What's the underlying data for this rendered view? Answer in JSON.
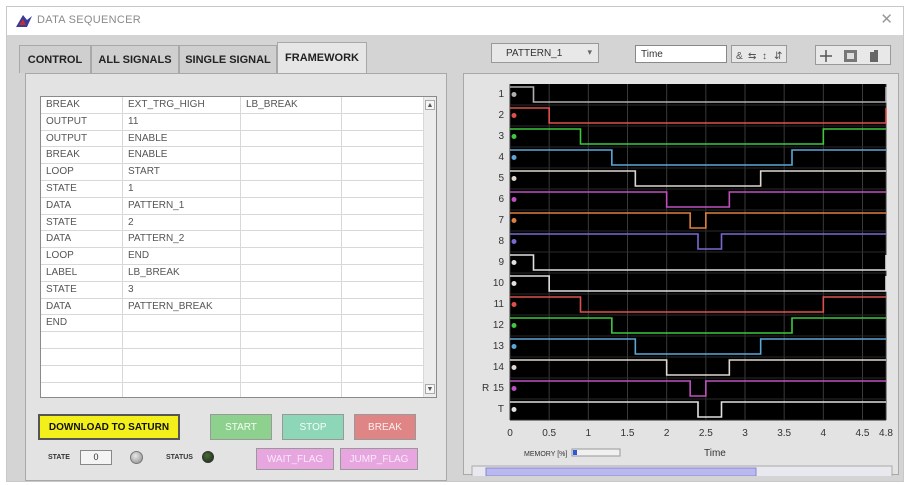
{
  "window": {
    "title": "DATA SEQUENCER",
    "close_glyph": "✕"
  },
  "tabs": [
    {
      "label": "CONTROL",
      "active": false
    },
    {
      "label": "ALL SIGNALS",
      "active": false
    },
    {
      "label": "SINGLE SIGNAL",
      "active": false
    },
    {
      "label": "FRAMEWORK",
      "active": true
    }
  ],
  "pattern_select": {
    "value": "PATTERN_1"
  },
  "x_field": {
    "value": "Time"
  },
  "table": {
    "rows": [
      [
        "BREAK",
        "EXT_TRG_HIGH",
        "LB_BREAK",
        ""
      ],
      [
        "OUTPUT",
        "11",
        "",
        ""
      ],
      [
        "OUTPUT",
        "ENABLE",
        "",
        ""
      ],
      [
        "BREAK",
        "ENABLE",
        "",
        ""
      ],
      [
        "LOOP",
        "START",
        "",
        ""
      ],
      [
        "STATE",
        "1",
        "",
        ""
      ],
      [
        "DATA",
        "PATTERN_1",
        "",
        ""
      ],
      [
        "STATE",
        "2",
        "",
        ""
      ],
      [
        "DATA",
        "PATTERN_2",
        "",
        ""
      ],
      [
        "LOOP",
        "END",
        "",
        ""
      ],
      [
        "LABEL",
        "LB_BREAK",
        "",
        ""
      ],
      [
        "STATE",
        "3",
        "",
        ""
      ],
      [
        "DATA",
        "PATTERN_BREAK",
        "",
        ""
      ],
      [
        "END",
        "",
        "",
        ""
      ],
      [
        "",
        "",
        "",
        ""
      ],
      [
        "",
        "",
        "",
        ""
      ],
      [
        "",
        "",
        "",
        ""
      ],
      [
        "",
        "",
        "",
        ""
      ]
    ]
  },
  "buttons": {
    "download": "DOWNLOAD TO SATURN",
    "start": "START",
    "stop": "STOP",
    "break": "BREAK",
    "wait_flag": "WAIT_FLAG",
    "jump_flag": "JUMP_FLAG"
  },
  "state": {
    "label": "STATE",
    "value": "0"
  },
  "status": {
    "label": "STATUS"
  },
  "colors": {
    "download_bg": "#f2ef1a",
    "start_bg": "#8ed18e",
    "stop_bg": "#8ed6b8",
    "break_bg": "#e08585",
    "flag_bg": "#e7a6e0",
    "plot_bg": "#000000"
  },
  "chart_data": {
    "type": "line",
    "xlabel": "Time",
    "xlim": [
      0,
      4.8
    ],
    "x_ticks": [
      "0",
      "0.5",
      "1",
      "1.5",
      "2",
      "2.5",
      "3",
      "3.5",
      "4",
      "4.5",
      "4.8"
    ],
    "y_labels": [
      "1",
      "2",
      "3",
      "4",
      "5",
      "6",
      "7",
      "8",
      "9",
      "10",
      "11",
      "12",
      "13",
      "14",
      "15",
      "T"
    ],
    "y_label_prefix": "R",
    "memory_label": "MEMORY [%]",
    "series": [
      {
        "color": "#b0b0b0",
        "transitions": [
          0.3,
          4.8
        ]
      },
      {
        "color": "#e0504a",
        "transitions": [
          0.5,
          4.8
        ]
      },
      {
        "color": "#3ec83e",
        "transitions": [
          0.9,
          4.0
        ]
      },
      {
        "color": "#5aa8d8",
        "transitions": [
          1.3,
          3.6
        ]
      },
      {
        "color": "#e0d8d0",
        "transitions": [
          1.6,
          3.2
        ]
      },
      {
        "color": "#c050c0",
        "transitions": [
          2.0,
          2.8
        ]
      },
      {
        "color": "#e08040",
        "transitions": [
          2.3,
          2.5
        ]
      },
      {
        "color": "#7a6ad0",
        "transitions": [
          2.4,
          2.7
        ]
      },
      {
        "color": "#e0e0e0",
        "transitions": [
          0.3,
          4.8
        ]
      },
      {
        "color": "#e0e0e0",
        "transitions": [
          0.5,
          4.8
        ]
      },
      {
        "color": "#e0504a",
        "transitions": [
          0.9,
          4.0
        ]
      },
      {
        "color": "#3ec83e",
        "transitions": [
          1.3,
          3.6
        ]
      },
      {
        "color": "#5aa8d8",
        "transitions": [
          1.6,
          3.2
        ]
      },
      {
        "color": "#e0d8d0",
        "transitions": [
          2.0,
          2.8
        ]
      },
      {
        "color": "#c050c0",
        "transitions": [
          2.3,
          2.5
        ]
      },
      {
        "color": "#e0e0e0",
        "transitions": [
          2.4,
          2.7
        ]
      }
    ]
  }
}
